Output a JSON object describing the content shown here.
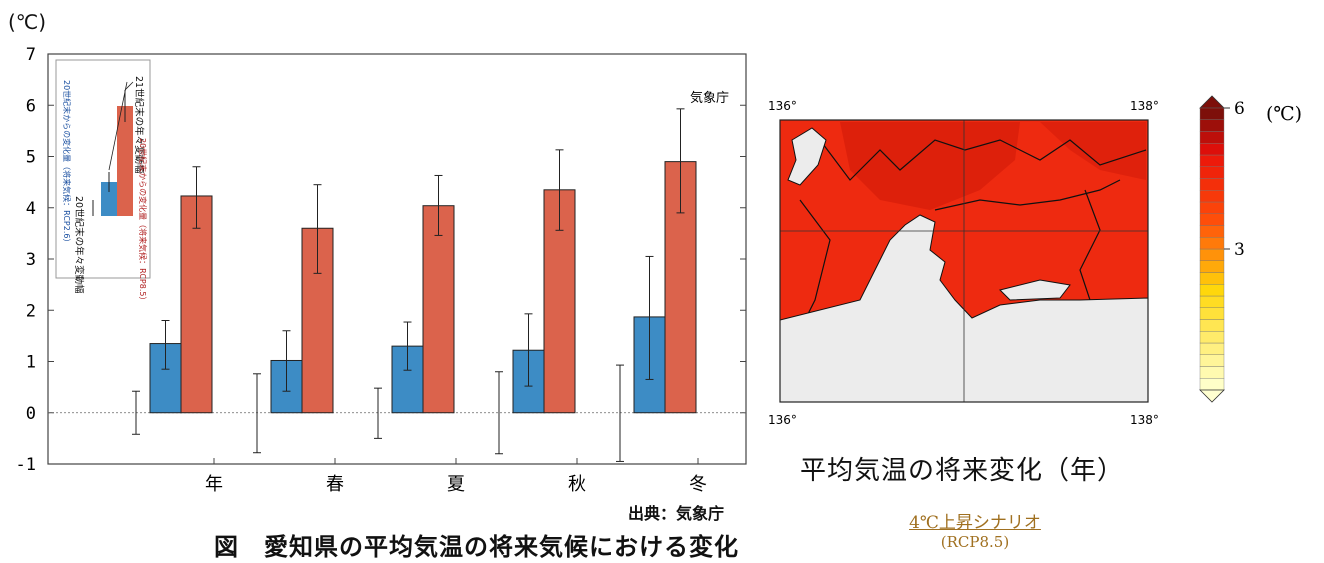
{
  "unit_label": "(℃)",
  "source_label": "出典：気象庁",
  "caption": "図　愛知県の平均気温の将来気候における変化",
  "chart_data": {
    "type": "bar",
    "watermark": "気象庁",
    "categories": [
      "年",
      "春",
      "夏",
      "秋",
      "冬"
    ],
    "y_ticks": [
      "-1",
      "0",
      "1",
      "2",
      "3",
      "4",
      "5",
      "6",
      "7"
    ],
    "ylim": [
      -1,
      7
    ],
    "baseline_interannual": [
      {
        "low": -0.42,
        "high": 0.42
      },
      {
        "low": -0.78,
        "high": 0.76
      },
      {
        "low": -0.5,
        "high": 0.48
      },
      {
        "low": -0.8,
        "high": 0.8
      },
      {
        "low": -0.95,
        "high": 0.93
      }
    ],
    "series": [
      {
        "color": "#3d8cc5",
        "values": [
          1.35,
          1.02,
          1.3,
          1.22,
          1.87
        ],
        "err_low": [
          0.85,
          0.42,
          0.83,
          0.52,
          0.65
        ],
        "err_high": [
          1.8,
          1.6,
          1.77,
          1.93,
          3.05
        ]
      },
      {
        "color": "#db634c",
        "values": [
          4.23,
          3.6,
          4.04,
          4.35,
          4.9
        ],
        "err_low": [
          3.6,
          2.72,
          3.46,
          3.56,
          3.9
        ],
        "err_high": [
          4.8,
          4.45,
          4.63,
          5.13,
          5.93
        ]
      }
    ],
    "legend": {
      "label_21c_interannual": "21世紀末の年々変動幅",
      "label_rcp85": "20世紀末からの変化量（将来気候：RCP8.5）",
      "label_rcp26": "20世紀末からの変化量（将来気候：RCP2.6）",
      "label_20c_interannual": "20世紀末の年々変動幅"
    }
  },
  "map": {
    "title": "平均気温の将来変化（年）",
    "lon_left": "136°",
    "lon_right": "138°",
    "colorbar_unit": "(℃)",
    "colorbar_labels": [
      {
        "value": 6,
        "text": "6"
      },
      {
        "value": 3,
        "text": "3"
      }
    ],
    "colorbar_min": 0,
    "colorbar_max": 6,
    "scenario_title": "4℃上昇シナリオ",
    "scenario_sub": "(RCP8.5)"
  }
}
